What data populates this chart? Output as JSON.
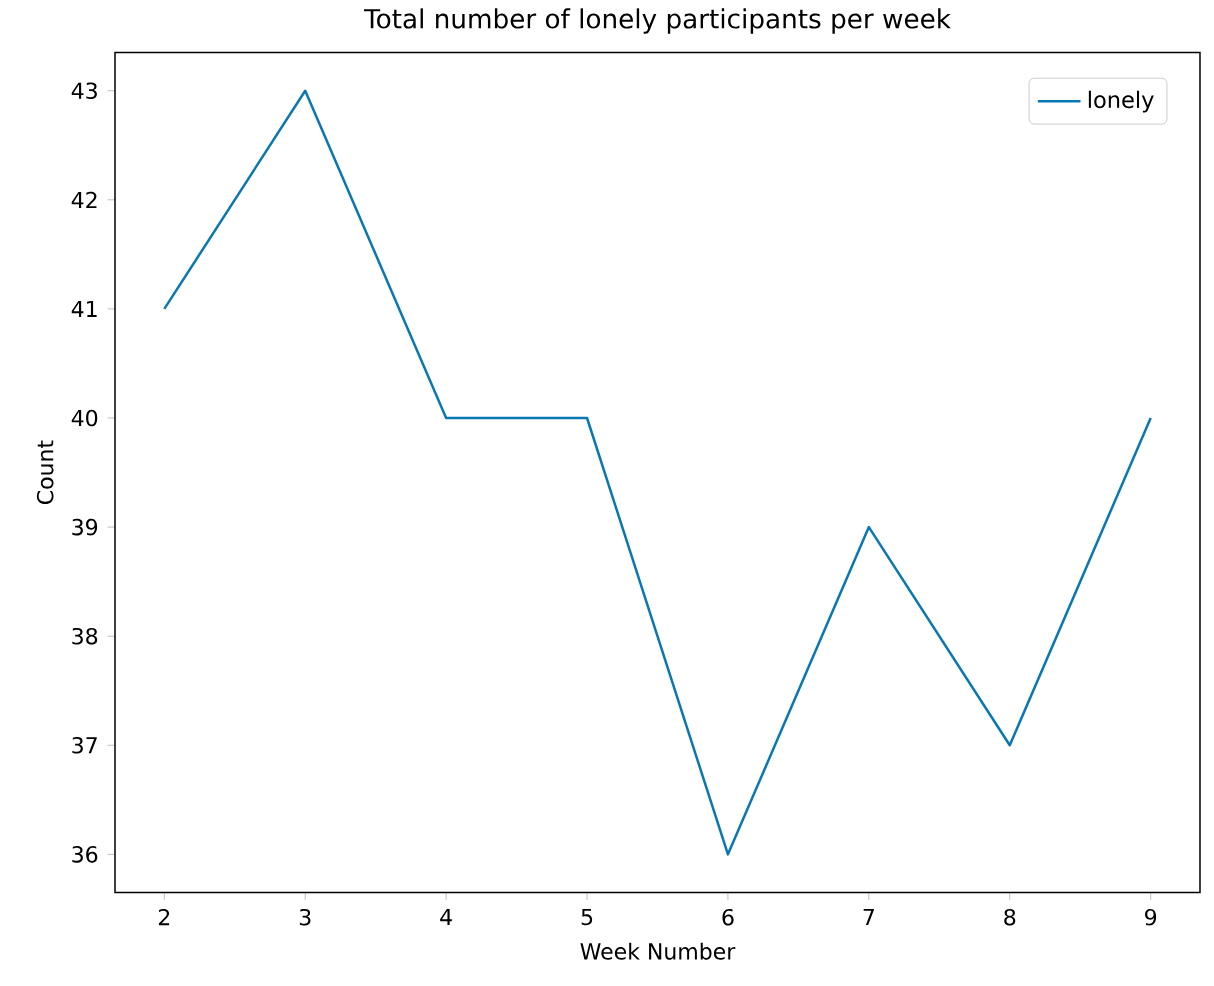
{
  "chart_data": {
    "type": "line",
    "title": "Total number of lonely participants per week",
    "xlabel": "Week Number",
    "ylabel": "Count",
    "x": [
      2,
      3,
      4,
      5,
      6,
      7,
      8,
      9
    ],
    "series": [
      {
        "name": "lonely",
        "color": "#0a77b5",
        "values": [
          41,
          43,
          40,
          40,
          36,
          39,
          37,
          40
        ]
      }
    ],
    "xlim": [
      1.65,
      9.35
    ],
    "ylim": [
      35.65,
      43.35
    ],
    "xticks": [
      2,
      3,
      4,
      5,
      6,
      7,
      8,
      9
    ],
    "yticks": [
      36,
      37,
      38,
      39,
      40,
      41,
      42,
      43
    ],
    "legend": "top right",
    "marker": "none",
    "grid": false
  }
}
